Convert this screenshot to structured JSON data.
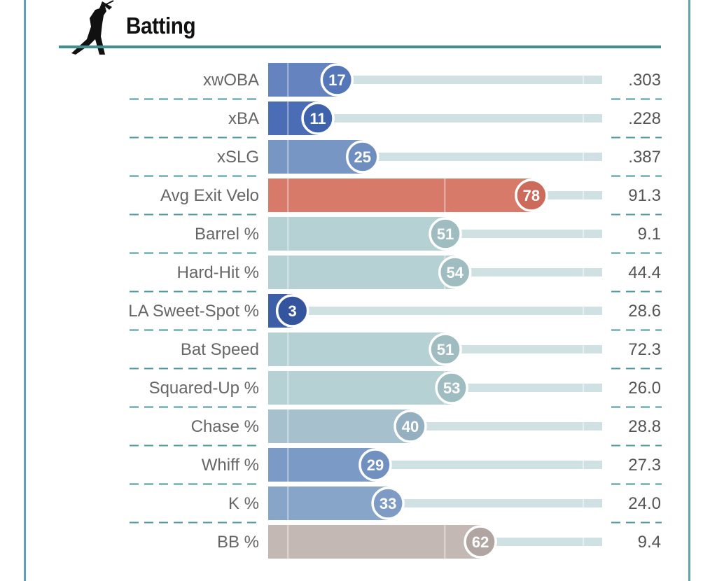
{
  "header": {
    "title": "Batting",
    "icon": "batter-silhouette-icon"
  },
  "chart_data": {
    "type": "bar",
    "title": "Batting",
    "xlim": [
      0,
      100
    ],
    "categories": [
      "xwOBA",
      "xBA",
      "xSLG",
      "Avg Exit Velo",
      "Barrel %",
      "Hard-Hit %",
      "LA Sweet-Spot %",
      "Bat Speed",
      "Squared-Up %",
      "Chase %",
      "Whiff %",
      "K %",
      "BB %"
    ],
    "percentiles": [
      17,
      11,
      25,
      78,
      51,
      54,
      3,
      51,
      53,
      40,
      29,
      33,
      62
    ],
    "values": [
      ".303",
      ".228",
      ".387",
      "91.3",
      "9.1",
      "44.4",
      "28.6",
      "72.3",
      "26.0",
      "28.8",
      "27.3",
      "24.0",
      "9.4"
    ],
    "bar_colors": [
      "#6483bf",
      "#4a6db5",
      "#7896c4",
      "#d77a6a",
      "#b5d1d4",
      "#b5d1d4",
      "#3d5fa8",
      "#b5d1d4",
      "#b5d1d4",
      "#a7c0cd",
      "#7c9ac6",
      "#87a5c9",
      "#c3b8b4"
    ],
    "circle_colors": [
      "#5577b8",
      "#3f62ad",
      "#6f8ec0",
      "#cc6b5b",
      "#9fbcc1",
      "#9fbcc1",
      "#34559e",
      "#9fbcc1",
      "#9fbcc1",
      "#94afbf",
      "#7090c0",
      "#7d9bc4",
      "#b0a5a1"
    ]
  },
  "colors": {
    "track": "#cfe1e3",
    "accent": "#3f8f93",
    "dash": "#4a9aa0"
  }
}
